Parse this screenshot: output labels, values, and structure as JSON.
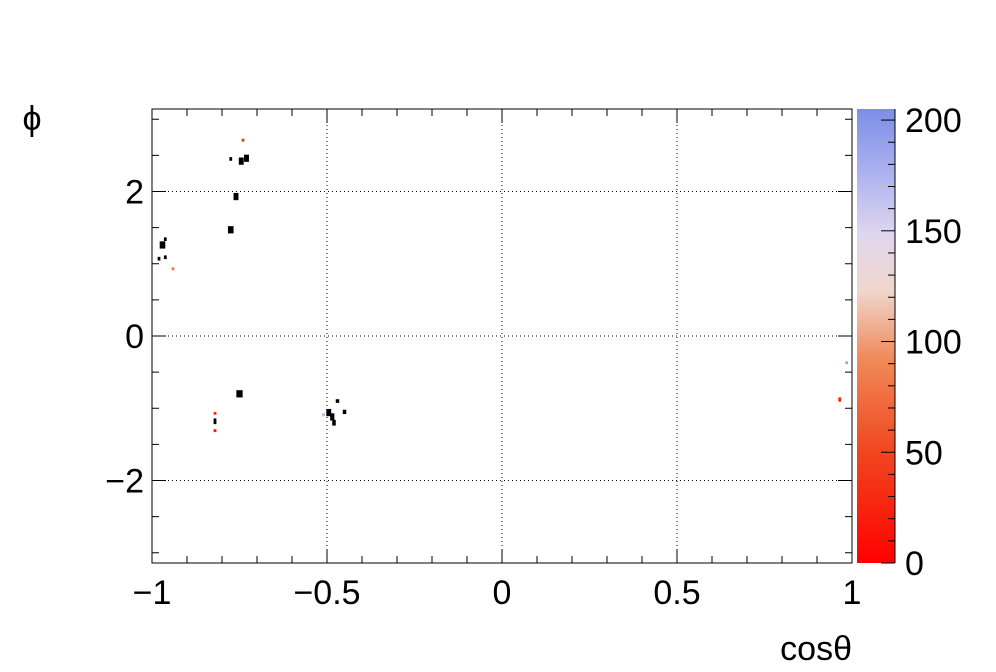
{
  "chart_data": {
    "type": "heatmap",
    "title": "",
    "xlabel": "cosθ",
    "ylabel": "ϕ",
    "xlim": [
      -1,
      1
    ],
    "ylim": [
      -3.14159,
      3.14159
    ],
    "grid": true,
    "x_ticks": [
      {
        "value": -1,
        "label": "−1"
      },
      {
        "value": -0.5,
        "label": "−0.5"
      },
      {
        "value": 0,
        "label": "0"
      },
      {
        "value": 0.5,
        "label": "0.5"
      },
      {
        "value": 1,
        "label": "1"
      }
    ],
    "y_ticks": [
      {
        "value": -2,
        "label": "−2"
      },
      {
        "value": 0,
        "label": "0"
      },
      {
        "value": 2,
        "label": "2"
      }
    ],
    "colorbar": {
      "min": 0,
      "max": 205,
      "ticks": [
        {
          "value": 0,
          "label": "0"
        },
        {
          "value": 50,
          "label": "50"
        },
        {
          "value": 100,
          "label": "100"
        },
        {
          "value": 150,
          "label": "150"
        },
        {
          "value": 200,
          "label": "200"
        }
      ],
      "colors": [
        {
          "stop": 0.0,
          "color": "#ff0000"
        },
        {
          "stop": 0.25,
          "color": "#f04820"
        },
        {
          "stop": 0.45,
          "color": "#f08a5a"
        },
        {
          "stop": 0.6,
          "color": "#f0d6cc"
        },
        {
          "stop": 0.72,
          "color": "#e0d6ee"
        },
        {
          "stop": 0.85,
          "color": "#b0b4f0"
        },
        {
          "stop": 1.0,
          "color": "#7b8fe6"
        }
      ]
    },
    "cells": [
      {
        "x": -0.97,
        "y": 1.26,
        "w": 0.016,
        "h": 0.1,
        "z": -1
      },
      {
        "x": -0.962,
        "y": 1.34,
        "w": 0.008,
        "h": 0.05,
        "z": -1
      },
      {
        "x": -0.98,
        "y": 1.07,
        "w": 0.008,
        "h": 0.05,
        "z": -1
      },
      {
        "x": -0.962,
        "y": 1.09,
        "w": 0.008,
        "h": 0.05,
        "z": -1
      },
      {
        "x": -0.94,
        "y": 0.93,
        "w": 0.008,
        "h": 0.04,
        "z": 80
      },
      {
        "x": -0.775,
        "y": 1.47,
        "w": 0.016,
        "h": 0.1,
        "z": -1
      },
      {
        "x": -0.76,
        "y": 1.93,
        "w": 0.014,
        "h": 0.1,
        "z": -1
      },
      {
        "x": -0.775,
        "y": 2.45,
        "w": 0.008,
        "h": 0.05,
        "z": -1
      },
      {
        "x": -0.745,
        "y": 2.42,
        "w": 0.014,
        "h": 0.1,
        "z": -1
      },
      {
        "x": -0.73,
        "y": 2.46,
        "w": 0.014,
        "h": 0.1,
        "z": -1
      },
      {
        "x": -0.74,
        "y": 2.71,
        "w": 0.008,
        "h": 0.04,
        "z": 40
      },
      {
        "x": -0.75,
        "y": -0.8,
        "w": 0.018,
        "h": 0.1,
        "z": -1
      },
      {
        "x": -0.82,
        "y": -1.07,
        "w": 0.008,
        "h": 0.04,
        "z": 30
      },
      {
        "x": -0.82,
        "y": -1.18,
        "w": 0.008,
        "h": 0.08,
        "z": -1
      },
      {
        "x": -0.82,
        "y": -1.31,
        "w": 0.008,
        "h": 0.04,
        "z": 20
      },
      {
        "x": -0.495,
        "y": -1.06,
        "w": 0.014,
        "h": 0.1,
        "z": -1
      },
      {
        "x": -0.485,
        "y": -1.12,
        "w": 0.012,
        "h": 0.1,
        "z": -1
      },
      {
        "x": -0.48,
        "y": -1.2,
        "w": 0.01,
        "h": 0.08,
        "z": -1
      },
      {
        "x": -0.47,
        "y": -0.9,
        "w": 0.01,
        "h": 0.05,
        "z": -1
      },
      {
        "x": -0.45,
        "y": -1.05,
        "w": 0.01,
        "h": 0.06,
        "z": -1
      },
      {
        "x": -0.51,
        "y": -1.09,
        "w": 0.008,
        "h": 0.04,
        "z": 170
      },
      {
        "x": 0.965,
        "y": -0.88,
        "w": 0.008,
        "h": 0.06,
        "z": 25
      },
      {
        "x": 0.985,
        "y": -0.37,
        "w": 0.008,
        "h": 0.04,
        "z": 185
      }
    ]
  }
}
